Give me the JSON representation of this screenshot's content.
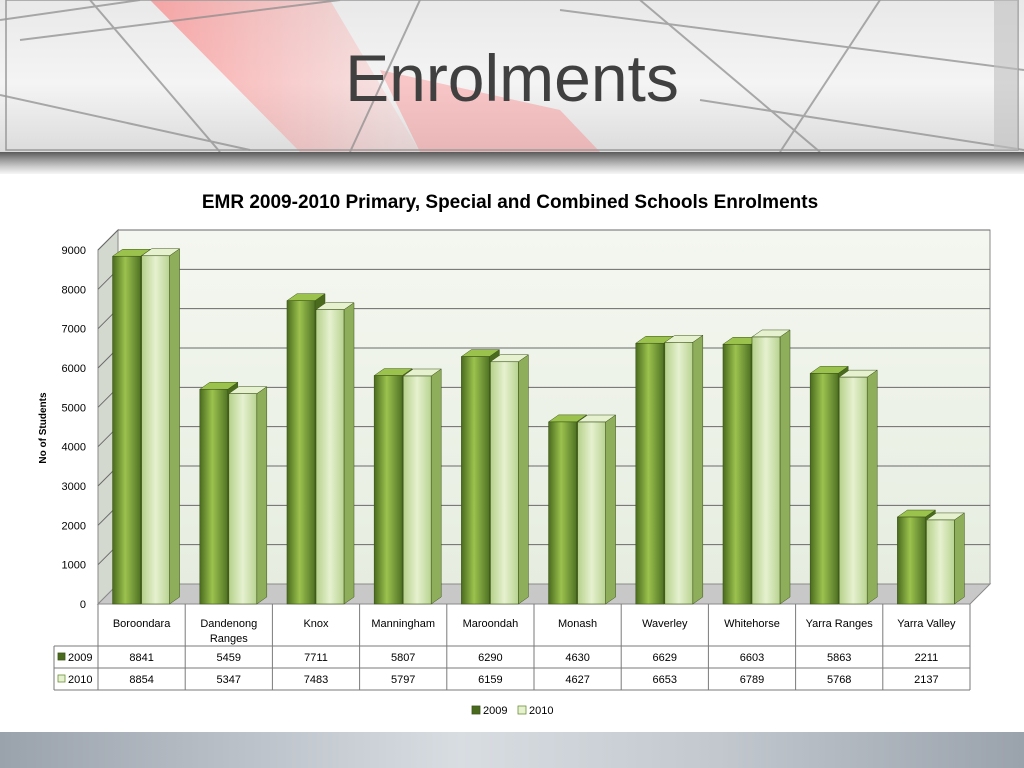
{
  "slide": {
    "title": "Enrolments"
  },
  "colors": {
    "series2009_dark": "#4a6b1e",
    "series2009_light": "#9cc24e",
    "series2010_dark": "#b5d08a",
    "series2010_light": "#e6f1cf",
    "wall": "#eef3e8",
    "gridline": "#6a6a6a"
  },
  "chart_data": {
    "type": "bar",
    "title": "EMR 2009-2010 Primary, Special and Combined Schools Enrolments",
    "ylabel": "No of Students",
    "xlabel": "",
    "ylim": [
      0,
      9000
    ],
    "yticks": [
      0,
      1000,
      2000,
      3000,
      4000,
      5000,
      6000,
      7000,
      8000,
      9000
    ],
    "grid": true,
    "legend": "bottom",
    "categories": [
      "Boroondara",
      "Dandenong Ranges",
      "Knox",
      "Manningham",
      "Maroondah",
      "Monash",
      "Waverley",
      "Whitehorse",
      "Yarra Ranges",
      "Yarra Valley"
    ],
    "series": [
      {
        "name": "2009",
        "values": [
          8841,
          5459,
          7711,
          5807,
          6290,
          4630,
          6629,
          6603,
          5863,
          2211
        ]
      },
      {
        "name": "2010",
        "values": [
          8854,
          5347,
          7483,
          5797,
          6159,
          4627,
          6653,
          6789,
          5768,
          2137
        ]
      }
    ]
  }
}
